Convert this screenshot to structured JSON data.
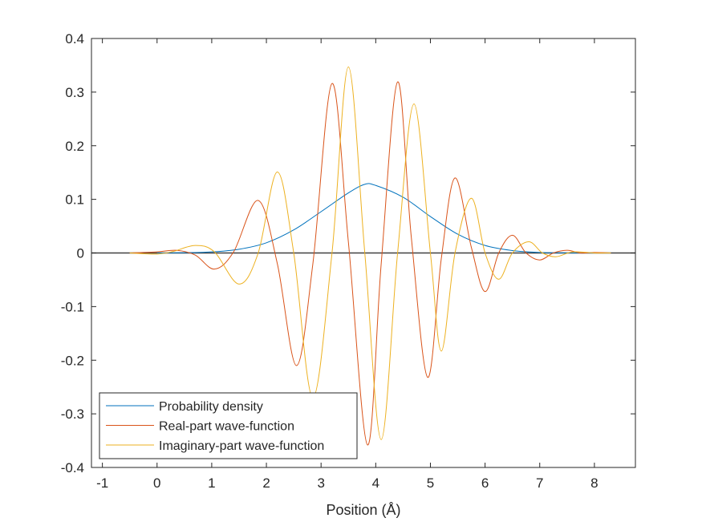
{
  "chart_data": {
    "type": "line",
    "title": "",
    "xlabel": "Position (Å)",
    "ylabel": "",
    "xlim": [
      -1.2,
      8.75
    ],
    "ylim": [
      -0.4,
      0.4
    ],
    "xticks": [
      -1,
      0,
      1,
      2,
      3,
      4,
      5,
      6,
      7,
      8
    ],
    "yticks": [
      -0.4,
      -0.3,
      -0.2,
      -0.1,
      0,
      0.1,
      0.2,
      0.3,
      0.4
    ],
    "xtick_labels": [
      "-1",
      "0",
      "1",
      "2",
      "3",
      "4",
      "5",
      "6",
      "7",
      "8"
    ],
    "ytick_labels": [
      "-0.4",
      "-0.3",
      "-0.2",
      "-0.1",
      "0",
      "0.1",
      "0.2",
      "0.3",
      "0.4"
    ],
    "grid": false,
    "legend_position": "bottom-left",
    "baseline": {
      "y": 0,
      "color": "#404040"
    },
    "series": [
      {
        "name": "Probability density",
        "color": "#0072BD",
        "x": [
          0.0,
          0.5,
          1.0,
          1.5,
          2.0,
          2.5,
          3.0,
          3.5,
          3.8,
          4.0,
          4.5,
          5.0,
          5.5,
          6.0,
          6.5,
          7.0,
          7.5,
          8.0
        ],
        "y": [
          0.0,
          0.0005,
          0.002,
          0.007,
          0.019,
          0.043,
          0.077,
          0.112,
          0.128,
          0.126,
          0.104,
          0.068,
          0.035,
          0.014,
          0.0045,
          0.001,
          0.0002,
          0.0
        ]
      },
      {
        "name": "Real-part wave-function",
        "color": "#D95319",
        "x": [
          -0.5,
          0.0,
          0.35,
          0.7,
          1.05,
          1.4,
          1.85,
          2.2,
          2.55,
          2.85,
          3.2,
          3.5,
          3.85,
          4.1,
          4.4,
          4.65,
          4.95,
          5.2,
          5.45,
          5.75,
          6.0,
          6.25,
          6.5,
          6.75,
          7.0,
          7.25,
          7.5,
          7.75,
          8.0,
          8.3
        ],
        "y": [
          0.0,
          0.002,
          0.005,
          -0.004,
          -0.03,
          0.002,
          0.098,
          -0.02,
          -0.21,
          -0.02,
          0.316,
          0.02,
          -0.358,
          -0.02,
          0.319,
          0.03,
          -0.232,
          -0.01,
          0.14,
          0.01,
          -0.072,
          0.0,
          0.033,
          0.0,
          -0.013,
          0.0,
          0.005,
          0.0,
          0.001,
          0.0
        ]
      },
      {
        "name": "Imaginary-part wave-function",
        "color": "#EDB120",
        "x": [
          -0.5,
          0.0,
          0.3,
          0.7,
          1.05,
          1.5,
          1.85,
          2.2,
          2.5,
          2.85,
          3.2,
          3.5,
          3.8,
          4.1,
          4.4,
          4.7,
          5.0,
          5.2,
          5.45,
          5.75,
          6.0,
          6.25,
          6.5,
          6.8,
          7.05,
          7.3,
          7.6,
          8.0,
          8.3
        ],
        "y": [
          0.0,
          -0.002,
          0.003,
          0.014,
          0.002,
          -0.058,
          0.0,
          0.151,
          0.0,
          -0.27,
          0.0,
          0.347,
          0.0,
          -0.348,
          0.0,
          0.278,
          0.0,
          -0.183,
          0.0,
          0.102,
          0.0,
          -0.049,
          0.0,
          0.021,
          0.0,
          -0.007,
          0.002,
          0.0,
          0.0
        ]
      }
    ]
  }
}
